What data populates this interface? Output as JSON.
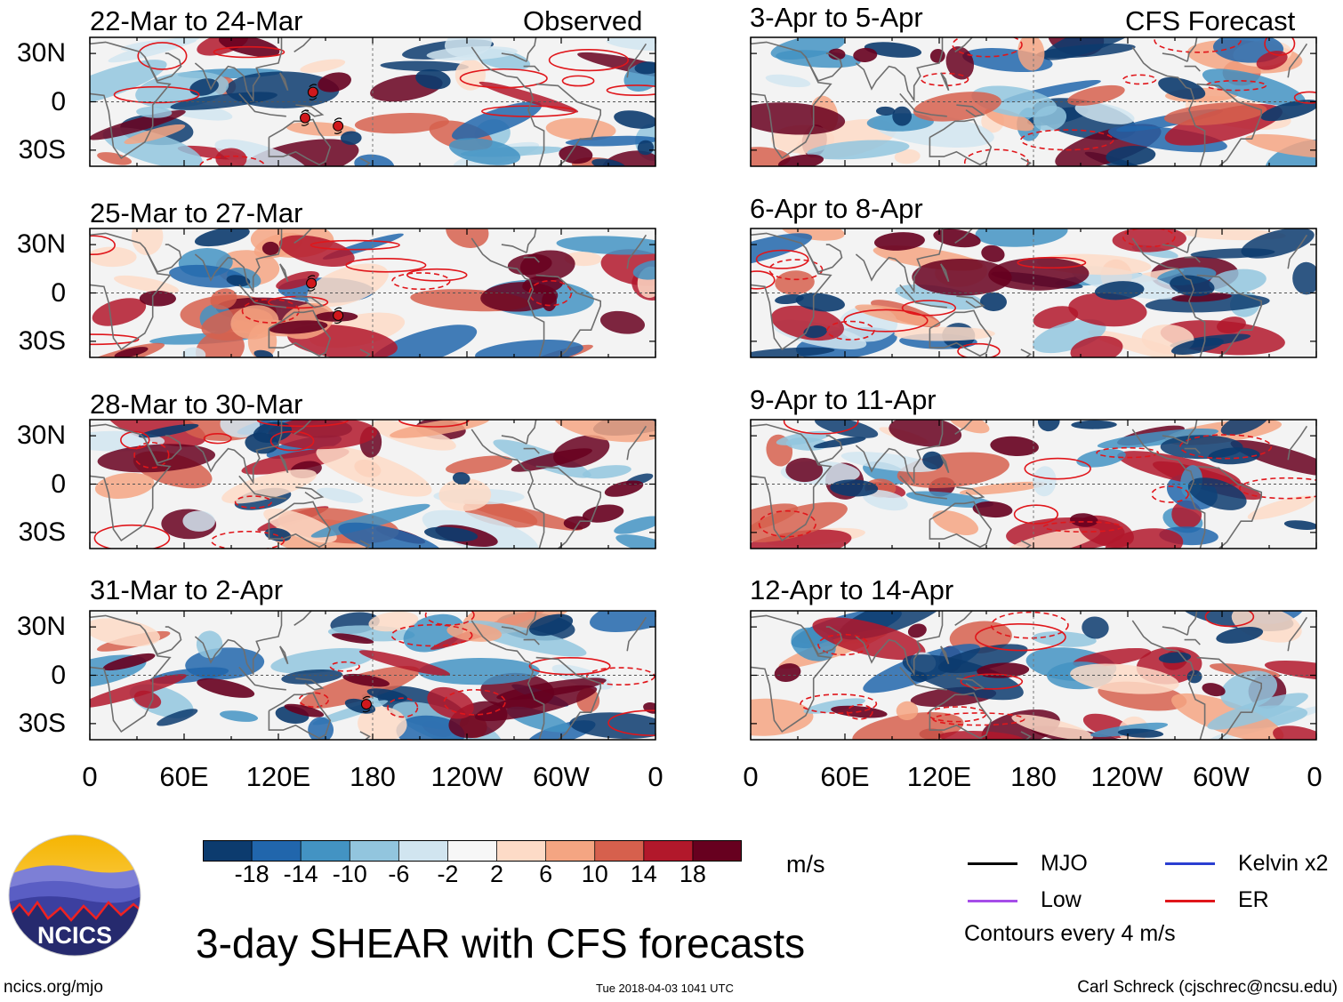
{
  "figure": {
    "title": "3-day SHEAR with CFS forecasts",
    "site": "ncics.org/mjo",
    "timestamp": "Tue 2018-04-03 1041 UTC",
    "author": "Carl Schreck (cjschrec@ncsu.edu)",
    "logo_text": "NCICS"
  },
  "columns": {
    "left_header": "Observed",
    "right_header": "CFS Forecast"
  },
  "panels_left": [
    {
      "period": "22-Mar to 24-Mar",
      "storms": [
        {
          "lon": 142,
          "lat": 6
        },
        {
          "lon": 137,
          "lat": -10
        },
        {
          "lon": 158,
          "lat": -15
        }
      ]
    },
    {
      "period": "25-Mar to 27-Mar",
      "storms": [
        {
          "lon": 141,
          "lat": 6
        },
        {
          "lon": 158,
          "lat": -14
        }
      ]
    },
    {
      "period": "28-Mar to 30-Mar",
      "storms": []
    },
    {
      "period": "31-Mar to 2-Apr",
      "storms": [
        {
          "lon": 176,
          "lat": -18
        }
      ]
    }
  ],
  "panels_right": [
    {
      "period": "3-Apr to 5-Apr"
    },
    {
      "period": "6-Apr to 8-Apr"
    },
    {
      "period": "9-Apr to 11-Apr"
    },
    {
      "period": "12-Apr to 14-Apr"
    }
  ],
  "axes": {
    "lat_labels": [
      "30N",
      "0",
      "30S"
    ],
    "lon_labels": [
      "0",
      "60E",
      "120E",
      "180",
      "120W",
      "60W",
      "0"
    ]
  },
  "colorbar": {
    "unit": "m/s",
    "labels": [
      "-18",
      "-14",
      "-10",
      "-6",
      "-2",
      "2",
      "6",
      "10",
      "14",
      "18"
    ],
    "colors": [
      "#0c3b6e",
      "#2166ac",
      "#4393c3",
      "#92c5de",
      "#d1e5f0",
      "#f7f7f7",
      "#fddbc7",
      "#f4a582",
      "#d6604d",
      "#b2182b",
      "#67001f"
    ]
  },
  "legend": {
    "items": [
      {
        "label": "MJO",
        "color": "#000000"
      },
      {
        "label": "Kelvin x2",
        "color": "#2b3fd1"
      },
      {
        "label": "Low",
        "color": "#a64ee8"
      },
      {
        "label": "ER",
        "color": "#e0161b"
      }
    ],
    "note": "Contours every 4 m/s"
  }
}
